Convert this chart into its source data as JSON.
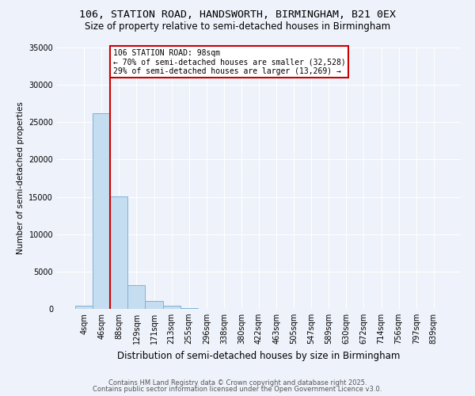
{
  "title_line1": "106, STATION ROAD, HANDSWORTH, BIRMINGHAM, B21 0EX",
  "title_line2": "Size of property relative to semi-detached houses in Birmingham",
  "xlabel": "Distribution of semi-detached houses by size in Birmingham",
  "ylabel": "Number of semi-detached properties",
  "bins": [
    "4sqm",
    "46sqm",
    "88sqm",
    "129sqm",
    "171sqm",
    "213sqm",
    "255sqm",
    "296sqm",
    "338sqm",
    "380sqm",
    "422sqm",
    "463sqm",
    "505sqm",
    "547sqm",
    "589sqm",
    "630sqm",
    "672sqm",
    "714sqm",
    "756sqm",
    "797sqm",
    "839sqm"
  ],
  "values": [
    400,
    26200,
    15100,
    3200,
    1100,
    400,
    150,
    50,
    10,
    5,
    3,
    2,
    1,
    1,
    0,
    0,
    0,
    0,
    0,
    0,
    0
  ],
  "bar_color": "#c5ddf0",
  "bar_edge_color": "#7fb3d3",
  "property_bin_index": 2,
  "annotation_title": "106 STATION ROAD: 98sqm",
  "annotation_line1": "← 70% of semi-detached houses are smaller (32,528)",
  "annotation_line2": "29% of semi-detached houses are larger (13,269) →",
  "vline_color": "#cc0000",
  "annotation_box_color": "#cc0000",
  "ylim": [
    0,
    35000
  ],
  "yticks": [
    0,
    5000,
    10000,
    15000,
    20000,
    25000,
    30000,
    35000
  ],
  "footnote1": "Contains HM Land Registry data © Crown copyright and database right 2025.",
  "footnote2": "Contains public sector information licensed under the Open Government Licence v3.0.",
  "background_color": "#eef2fa"
}
